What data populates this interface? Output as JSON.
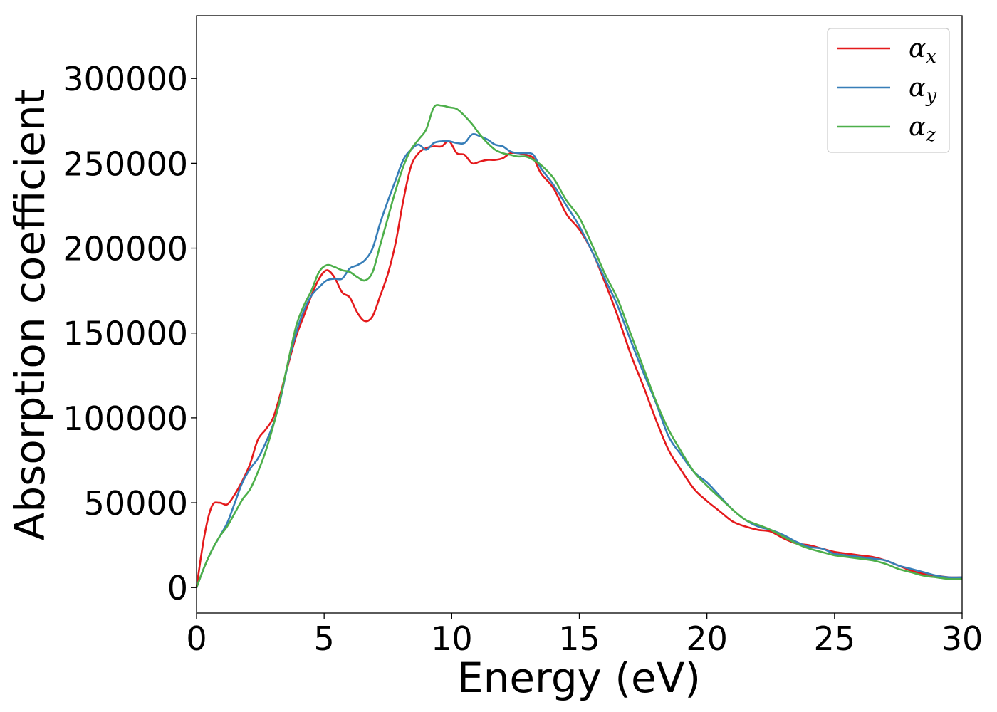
{
  "chart_data": {
    "type": "line",
    "title": "",
    "xlabel": "Energy (eV)",
    "ylabel": "Absorption coefficient",
    "xlim": [
      0,
      30
    ],
    "ylim": [
      -15000,
      337000
    ],
    "xticks": [
      0,
      5,
      10,
      15,
      20,
      25,
      30
    ],
    "yticks": [
      0,
      50000,
      100000,
      150000,
      200000,
      250000,
      300000
    ],
    "grid": false,
    "legend_position": "top-right",
    "series": [
      {
        "name": "αx",
        "symbol": "α",
        "subscript": "x",
        "color": "#e41a1c",
        "x": [
          0,
          0.3,
          0.6,
          0.9,
          1.2,
          1.5,
          1.8,
          2.1,
          2.4,
          2.7,
          3.0,
          3.3,
          3.6,
          3.9,
          4.2,
          4.5,
          4.8,
          5.1,
          5.4,
          5.7,
          6.0,
          6.3,
          6.6,
          6.9,
          7.2,
          7.5,
          7.8,
          8.1,
          8.4,
          8.7,
          9.0,
          9.3,
          9.6,
          9.9,
          10.2,
          10.5,
          10.8,
          11.1,
          11.4,
          11.7,
          12.0,
          12.3,
          12.6,
          12.9,
          13.2,
          13.5,
          14.0,
          14.5,
          15.0,
          15.5,
          16.0,
          16.5,
          17.0,
          17.5,
          18.0,
          18.5,
          19.0,
          19.5,
          20.0,
          20.5,
          21.0,
          21.5,
          22.0,
          22.5,
          23.0,
          23.5,
          24.0,
          24.5,
          25.0,
          25.5,
          26.0,
          26.5,
          27.0,
          27.5,
          28.0,
          28.5,
          29.0,
          29.5,
          30.0
        ],
        "y": [
          0,
          30000,
          48000,
          50000,
          49000,
          55000,
          63000,
          73000,
          87000,
          93000,
          100000,
          115000,
          132000,
          148000,
          160000,
          172000,
          182000,
          187000,
          183000,
          174000,
          171000,
          162000,
          157000,
          160000,
          172000,
          185000,
          203000,
          228000,
          248000,
          256000,
          259000,
          260000,
          260000,
          263000,
          256000,
          255000,
          250000,
          251000,
          252000,
          252000,
          253000,
          256000,
          256000,
          255000,
          253000,
          244000,
          235000,
          220000,
          211000,
          198000,
          180000,
          160000,
          138000,
          119000,
          99000,
          81000,
          69000,
          58000,
          51000,
          45000,
          39000,
          36000,
          34000,
          33000,
          29000,
          26000,
          25000,
          23000,
          21000,
          20000,
          19000,
          18000,
          16000,
          13000,
          10000,
          8000,
          7000,
          6000,
          6000
        ]
      },
      {
        "name": "αy",
        "symbol": "α",
        "subscript": "y",
        "color": "#377eb8",
        "x": [
          0,
          0.3,
          0.6,
          0.9,
          1.2,
          1.5,
          1.8,
          2.1,
          2.4,
          2.7,
          3.0,
          3.3,
          3.6,
          3.9,
          4.2,
          4.5,
          4.8,
          5.1,
          5.4,
          5.7,
          6.0,
          6.3,
          6.6,
          6.9,
          7.2,
          7.5,
          7.8,
          8.1,
          8.4,
          8.7,
          9.0,
          9.3,
          9.6,
          9.9,
          10.2,
          10.5,
          10.8,
          11.1,
          11.4,
          11.7,
          12.0,
          12.3,
          12.6,
          12.9,
          13.2,
          13.5,
          14.0,
          14.5,
          15.0,
          15.5,
          16.0,
          16.5,
          17.0,
          17.5,
          18.0,
          18.5,
          19.0,
          19.5,
          20.0,
          20.5,
          21.0,
          21.5,
          22.0,
          22.5,
          23.0,
          23.5,
          24.0,
          24.5,
          25.0,
          25.5,
          26.0,
          26.5,
          27.0,
          27.5,
          28.0,
          28.5,
          29.0,
          29.5,
          30.0
        ],
        "y": [
          0,
          12000,
          22000,
          30000,
          38000,
          50000,
          62000,
          70000,
          76000,
          85000,
          96000,
          112000,
          133000,
          150000,
          163000,
          172000,
          177000,
          181000,
          182000,
          182000,
          188000,
          190000,
          193000,
          200000,
          215000,
          228000,
          240000,
          252000,
          258000,
          261000,
          258000,
          262000,
          263000,
          263000,
          262000,
          262000,
          267000,
          266000,
          264000,
          261000,
          260000,
          257000,
          256000,
          256000,
          255000,
          247000,
          237000,
          225000,
          213000,
          198000,
          182000,
          166000,
          146000,
          127000,
          109000,
          89000,
          78000,
          68000,
          62000,
          54000,
          46000,
          40000,
          36000,
          34000,
          31000,
          27000,
          24000,
          23000,
          20000,
          19000,
          18000,
          17000,
          16000,
          13000,
          11000,
          9000,
          7000,
          6000,
          6000
        ]
      },
      {
        "name": "αz",
        "symbol": "α",
        "subscript": "z",
        "color": "#4daf4a",
        "x": [
          0,
          0.3,
          0.6,
          0.9,
          1.2,
          1.5,
          1.8,
          2.1,
          2.4,
          2.7,
          3.0,
          3.3,
          3.6,
          3.9,
          4.2,
          4.5,
          4.8,
          5.1,
          5.4,
          5.7,
          6.0,
          6.3,
          6.6,
          6.9,
          7.2,
          7.5,
          7.8,
          8.1,
          8.4,
          8.7,
          9.0,
          9.3,
          9.6,
          9.9,
          10.2,
          10.5,
          10.8,
          11.1,
          11.4,
          11.7,
          12.0,
          12.3,
          12.6,
          12.9,
          13.2,
          13.5,
          14.0,
          14.5,
          15.0,
          15.5,
          16.0,
          16.5,
          17.0,
          17.5,
          18.0,
          18.5,
          19.0,
          19.5,
          20.0,
          20.5,
          21.0,
          21.5,
          22.0,
          22.5,
          23.0,
          23.5,
          24.0,
          24.5,
          25.0,
          25.5,
          26.0,
          26.5,
          27.0,
          27.5,
          28.0,
          28.5,
          29.0,
          29.5,
          30.0
        ],
        "y": [
          0,
          12000,
          22000,
          30000,
          36000,
          44000,
          52000,
          58000,
          68000,
          80000,
          95000,
          113000,
          134000,
          154000,
          166000,
          175000,
          186000,
          190000,
          189000,
          187000,
          186000,
          183000,
          181000,
          186000,
          202000,
          218000,
          234000,
          248000,
          258000,
          264000,
          270000,
          283000,
          284000,
          283000,
          282000,
          278000,
          273000,
          267000,
          262000,
          258000,
          256000,
          255000,
          254000,
          254000,
          252000,
          249000,
          241000,
          228000,
          218000,
          202000,
          185000,
          170000,
          150000,
          130000,
          110000,
          93000,
          80000,
          68000,
          60000,
          53000,
          46000,
          40000,
          37000,
          34000,
          30000,
          26000,
          23000,
          21000,
          19000,
          18000,
          17000,
          16000,
          14000,
          11000,
          9000,
          7000,
          6000,
          5000,
          5000
        ]
      }
    ]
  }
}
